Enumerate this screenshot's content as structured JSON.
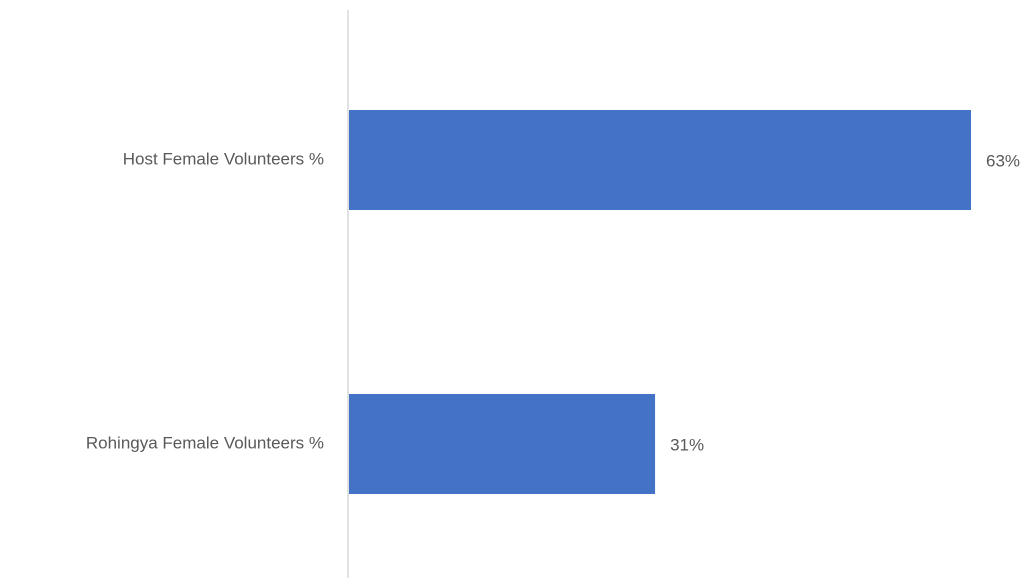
{
  "chart_data": {
    "type": "bar",
    "orientation": "horizontal",
    "categories": [
      "Host Female Volunteers %",
      "Rohingya Female Volunteers %"
    ],
    "values": [
      63,
      31
    ],
    "value_labels": [
      "63%",
      "31%"
    ],
    "title": "",
    "xlabel": "",
    "ylabel": "",
    "xlim": [
      0,
      63
    ],
    "grid": false,
    "legend": "none",
    "bar_color": "#4472C4",
    "axis_color": "#D9D9D9",
    "label_color": "#595959"
  }
}
